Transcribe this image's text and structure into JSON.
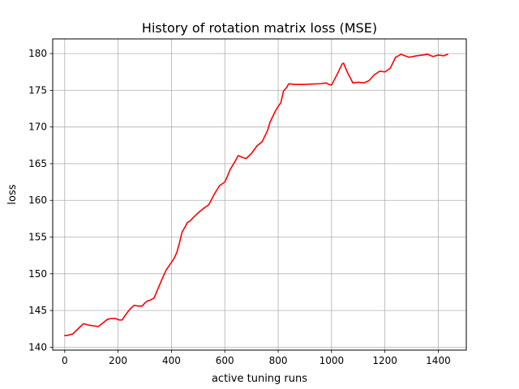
{
  "chart_data": {
    "type": "line",
    "title": "History of rotation matrix loss (MSE)",
    "xlabel": "active tuning runs",
    "ylabel": "loss",
    "xlim": [
      -45,
      1505
    ],
    "ylim": [
      139.6,
      182.0
    ],
    "xticks": [
      0,
      200,
      400,
      600,
      800,
      1000,
      1200,
      1400
    ],
    "yticks": [
      140,
      145,
      150,
      155,
      160,
      165,
      170,
      175,
      180
    ],
    "grid": true,
    "series": [
      {
        "name": "loss",
        "color": "#ff0000",
        "x": [
          0,
          10,
          30,
          50,
          70,
          90,
          110,
          125,
          140,
          160,
          175,
          190,
          205,
          215,
          230,
          245,
          260,
          275,
          290,
          300,
          310,
          320,
          335,
          350,
          365,
          380,
          395,
          410,
          420,
          430,
          440,
          450,
          460,
          470,
          480,
          500,
          520,
          540,
          550,
          560,
          580,
          600,
          610,
          620,
          640,
          650,
          670,
          680,
          700,
          720,
          740,
          760,
          770,
          790,
          800,
          810,
          820,
          830,
          840,
          860,
          900,
          960,
          980,
          990,
          1000,
          1020,
          1040,
          1045,
          1060,
          1080,
          1100,
          1120,
          1140,
          1160,
          1180,
          1200,
          1220,
          1240,
          1260,
          1290,
          1320,
          1340,
          1360,
          1380,
          1400,
          1420,
          1435
        ],
        "y": [
          141.6,
          141.6,
          141.8,
          142.5,
          143.2,
          143.0,
          142.9,
          142.8,
          143.2,
          143.8,
          143.9,
          143.9,
          143.7,
          143.7,
          144.5,
          145.2,
          145.7,
          145.6,
          145.6,
          146.0,
          146.3,
          146.4,
          146.7,
          148.0,
          149.3,
          150.5,
          151.3,
          152.1,
          152.9,
          154.2,
          155.7,
          156.3,
          157.0,
          157.2,
          157.6,
          158.3,
          158.9,
          159.4,
          160.1,
          160.8,
          162.0,
          162.5,
          163.3,
          164.2,
          165.4,
          166.1,
          165.8,
          165.7,
          166.4,
          167.4,
          168.0,
          169.5,
          170.7,
          172.2,
          172.8,
          173.3,
          174.9,
          175.3,
          175.9,
          175.8,
          175.8,
          175.9,
          176.0,
          175.8,
          175.7,
          177.1,
          178.6,
          178.7,
          177.4,
          176.0,
          176.1,
          176.0,
          176.3,
          177.1,
          177.6,
          177.5,
          178.0,
          179.5,
          179.9,
          179.5,
          179.7,
          179.8,
          179.9,
          179.6,
          179.8,
          179.7,
          179.9
        ]
      }
    ]
  }
}
